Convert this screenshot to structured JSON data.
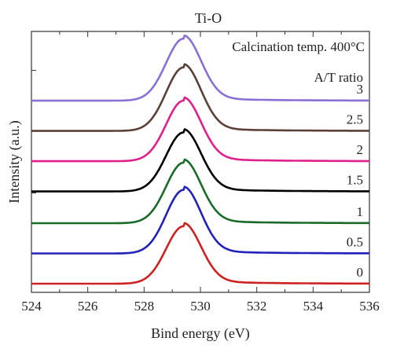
{
  "chart_data": {
    "type": "line",
    "title": "Ti-O",
    "xlabel": "Bind energy (eV)",
    "ylabel": "Intensity (a.u.)",
    "xlim": [
      524,
      536
    ],
    "x_ticks": [
      524,
      526,
      528,
      530,
      532,
      534,
      536
    ],
    "y_ticks_shown": false,
    "grid": false,
    "annotations": {
      "condition": "Calcination temp. 400°C",
      "legend_title": "A/T ratio"
    },
    "peak_model": {
      "center_ev": 529.4,
      "sigma_ev": 0.62,
      "tail_amplitude": 0.055,
      "tail_decay_ev": 2.0
    },
    "series": [
      {
        "name": "0",
        "color": "#cc2222",
        "baseline": 0.0,
        "peak_height": 1.9
      },
      {
        "name": "0.5",
        "color": "#2222bb",
        "baseline": 1.0,
        "peak_height": 2.1
      },
      {
        "name": "1",
        "color": "#1a6b2a",
        "baseline": 2.0,
        "peak_height": 2.0
      },
      {
        "name": "1.5",
        "color": "#000000",
        "baseline": 3.05,
        "peak_height": 1.95
      },
      {
        "name": "2",
        "color": "#e0208a",
        "baseline": 4.05,
        "peak_height": 2.0
      },
      {
        "name": "2.5",
        "color": "#5c4038",
        "baseline": 5.05,
        "peak_height": 2.1
      },
      {
        "name": "3",
        "color": "#8a6fd6",
        "baseline": 6.05,
        "peak_height": 2.05
      }
    ]
  }
}
